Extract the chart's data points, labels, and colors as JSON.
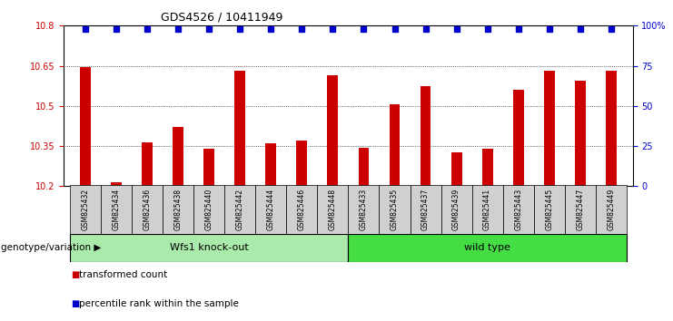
{
  "title": "GDS4526 / 10411949",
  "samples": [
    "GSM825432",
    "GSM825434",
    "GSM825436",
    "GSM825438",
    "GSM825440",
    "GSM825442",
    "GSM825444",
    "GSM825446",
    "GSM825448",
    "GSM825433",
    "GSM825435",
    "GSM825437",
    "GSM825439",
    "GSM825441",
    "GSM825443",
    "GSM825445",
    "GSM825447",
    "GSM825449"
  ],
  "bar_values": [
    10.645,
    10.215,
    10.365,
    10.42,
    10.34,
    10.63,
    10.36,
    10.37,
    10.615,
    10.345,
    10.505,
    10.575,
    10.325,
    10.34,
    10.56,
    10.63,
    10.595,
    10.63
  ],
  "bar_color": "#cc0000",
  "percentile_color": "#0000cc",
  "ylim": [
    10.2,
    10.8
  ],
  "yticks": [
    10.2,
    10.35,
    10.5,
    10.65,
    10.8
  ],
  "right_yticks": [
    0,
    25,
    50,
    75,
    100
  ],
  "gridlines": [
    10.35,
    10.5,
    10.65
  ],
  "group1_label": "Wfs1 knock-out",
  "group2_label": "wild type",
  "group1_count": 9,
  "group2_count": 9,
  "group1_color": "#aaeaaa",
  "group2_color": "#44dd44",
  "xaxis_label": "genotype/variation",
  "legend_items": [
    "transformed count",
    "percentile rank within the sample"
  ],
  "tick_bg": "#d0d0d0",
  "plot_bg": "#ffffff"
}
